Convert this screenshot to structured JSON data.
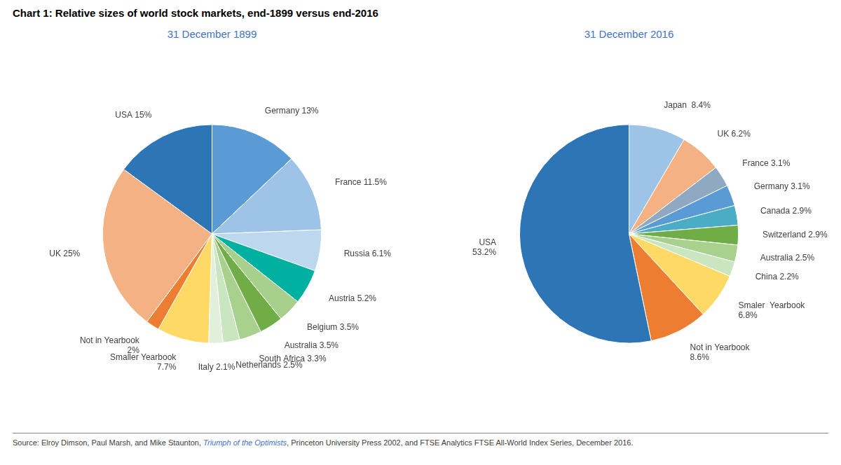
{
  "chart_data": [
    {
      "type": "pie",
      "title": "Chart 1: Relative sizes of world stock markets, end-1899 versus end-2016",
      "subtitle": "31 December 1899",
      "subtitle_color": "#4472C4",
      "categories": [
        "Germany 13%",
        "France 11.5%",
        "Russia 6.1%",
        "Austria 5.2%",
        "Belgium 3.5%",
        "Australia 3.5%",
        "South Africa 3.3%",
        "Netherlands 2.5%",
        "Italy 2.1%",
        "Smaller Yearbook\n7.7%",
        "Not in Yearbook\n2%",
        "UK 25%",
        "USA 15%"
      ],
      "values": [
        13.0,
        11.5,
        6.1,
        5.2,
        3.5,
        3.5,
        3.3,
        2.5,
        2.1,
        7.7,
        2.0,
        25.0,
        15.0
      ],
      "colors": [
        "#5B9BD5",
        "#9DC3E6",
        "#BDD7EE",
        "#00B0A0",
        "#A8D08D",
        "#70AD47",
        "#A9D18E",
        "#C9E6C0",
        "#E2EFDA",
        "#FFD966",
        "#ED7D31",
        "#F4B183",
        "#2E75B6"
      ],
      "annotations": [
        {
          "text": "Source: Elroy Dimson, Paul Marsh, and Mike Staunton, "
        },
        {
          "text": "Triumph of the Optimists",
          "color": "#4472C4"
        },
        {
          "text": ", Princeton University Press 2002, and FTSE Analytics FTSE All-World Index Series, December 2016."
        }
      ]
    },
    {
      "type": "pie",
      "subtitle": "31 December 2016",
      "subtitle_color": "#4472C4",
      "categories": [
        "Japan  8.4%",
        "UK 6.2%",
        "France 3.1%",
        "Germany 3.1%",
        "Canada 2.9%",
        "Switzerland 2.9%",
        "Australia 2.5%",
        "China 2.2%",
        "Smaler  Yearbook\n6.8%",
        "Not in Yearbook\n8.6%",
        "USA\n53.2%"
      ],
      "values": [
        8.4,
        6.2,
        3.1,
        3.1,
        2.9,
        2.9,
        2.5,
        2.2,
        6.8,
        8.6,
        53.2
      ],
      "colors": [
        "#9DC3E6",
        "#F4B183",
        "#8EA9C1",
        "#5B9BD5",
        "#4BACC6",
        "#70AD47",
        "#A9D18E",
        "#C9E6C0",
        "#FFD966",
        "#ED7D31",
        "#2E75B6"
      ]
    }
  ]
}
